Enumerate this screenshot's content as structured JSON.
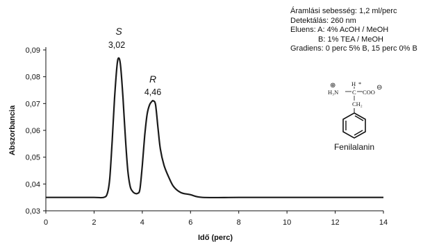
{
  "chart_data": {
    "type": "line",
    "xlabel": "Idő (perc)",
    "ylabel": "Abszorbancia",
    "xlim": [
      0,
      14
    ],
    "ylim": [
      0.03,
      0.09
    ],
    "xticks": [
      "0",
      "2",
      "4",
      "6",
      "8",
      "10",
      "12",
      "14"
    ],
    "yticks": [
      "0,03",
      "0,04",
      "0,05",
      "0,06",
      "0,07",
      "0,08",
      "0,09"
    ],
    "grid": false,
    "series": [
      {
        "color": "#1a1a1a",
        "x": [
          0,
          1.0,
          2.0,
          2.4,
          2.55,
          2.65,
          2.75,
          2.85,
          2.95,
          3.02,
          3.1,
          3.2,
          3.3,
          3.4,
          3.5,
          3.6,
          3.7,
          3.8,
          3.9,
          4.0,
          4.1,
          4.2,
          4.3,
          4.4,
          4.46,
          4.55,
          4.65,
          4.75,
          4.9,
          5.1,
          5.3,
          5.6,
          6.0,
          6.5,
          8,
          10,
          12,
          14
        ],
        "y": [
          0.035,
          0.035,
          0.035,
          0.035,
          0.0365,
          0.042,
          0.056,
          0.072,
          0.084,
          0.087,
          0.084,
          0.072,
          0.057,
          0.045,
          0.039,
          0.0372,
          0.0365,
          0.0365,
          0.038,
          0.047,
          0.058,
          0.066,
          0.0695,
          0.0708,
          0.071,
          0.0695,
          0.061,
          0.053,
          0.047,
          0.0425,
          0.039,
          0.0368,
          0.036,
          0.035,
          0.035,
          0.035,
          0.035,
          0.035
        ]
      }
    ],
    "annotations": [
      {
        "label": "S",
        "value": "3,02"
      },
      {
        "label": "R",
        "value": "4,46"
      }
    ]
  },
  "info": {
    "flow": "Áramlási sebesség: 1,2 ml/perc",
    "detection": "Detektálás: 260 nm",
    "eluent_a": "Eluens:  A: 4% AcOH / MeOH",
    "eluent_b": "B: 1% TEA / MeOH",
    "gradient": "Gradiens: 0 perc 5% B, 15 perc 0% B"
  },
  "structure": {
    "name": "Fenilalanin",
    "amine": "H₃N",
    "plus": "⊕",
    "minus": "⊖",
    "h": "H",
    "star": "*",
    "carbon": "C",
    "carboxylate": "COO",
    "ch2": "CH₂"
  }
}
